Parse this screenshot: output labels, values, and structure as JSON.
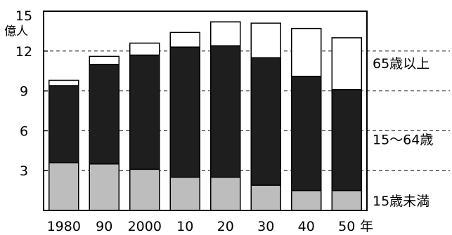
{
  "chart_data": {
    "type": "bar",
    "stacked": true,
    "title": "",
    "xlabel": "",
    "ylabel": "億人",
    "x_unit_label": "年",
    "ylim": [
      0,
      15
    ],
    "yticks": [
      "3",
      "6",
      "9",
      "12",
      "15"
    ],
    "categories": [
      "1980",
      "90",
      "2000",
      "10",
      "20",
      "30",
      "40",
      "50"
    ],
    "grid": "horizontal dashed",
    "legend": "right, labels beside each band",
    "series": [
      {
        "name": "15歳未満",
        "values": [
          3.6,
          3.5,
          3.1,
          2.5,
          2.5,
          1.9,
          1.5,
          1.5
        ],
        "color": "#bdbdbd"
      },
      {
        "name": "15〜64歳",
        "values": [
          5.8,
          7.5,
          8.6,
          9.8,
          9.9,
          9.6,
          8.6,
          7.6
        ],
        "color": "#1e1e1e"
      },
      {
        "name": "65歳以上",
        "values": [
          0.4,
          0.6,
          0.9,
          1.1,
          1.8,
          2.6,
          3.6,
          3.9
        ],
        "color": "#ffffff"
      }
    ]
  }
}
